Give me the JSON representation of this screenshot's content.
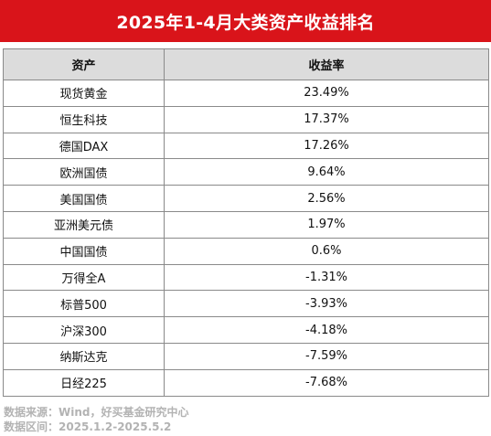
{
  "title": "2025年1-4月大类资产收益排名",
  "table": {
    "headers": [
      "资产",
      "收益率"
    ],
    "rows": [
      {
        "asset": "现货黄金",
        "return": "23.49%"
      },
      {
        "asset": "恒生科技",
        "return": "17.37%"
      },
      {
        "asset": "德国DAX",
        "return": "17.26%"
      },
      {
        "asset": "欧洲国债",
        "return": "9.64%"
      },
      {
        "asset": "美国国债",
        "return": "2.56%"
      },
      {
        "asset": "亚洲美元债",
        "return": "1.97%"
      },
      {
        "asset": "中国国债",
        "return": "0.6%"
      },
      {
        "asset": "万得全A",
        "return": "-1.31%"
      },
      {
        "asset": "标普500",
        "return": "-3.93%"
      },
      {
        "asset": "沪深300",
        "return": "-4.18%"
      },
      {
        "asset": "纳斯达克",
        "return": "-7.59%"
      },
      {
        "asset": "日经225",
        "return": "-7.68%"
      }
    ]
  },
  "footer": {
    "source": "数据来源：Wind，好买基金研究中心",
    "period": "数据区间：2025.1.2-2025.5.2"
  },
  "colors": {
    "title_bg": "#d9141a",
    "header_bg": "#dcdcdc",
    "footer_text": "#b3b3b3"
  },
  "chart_data": {
    "type": "table",
    "title": "2025年1-4月大类资产收益排名",
    "columns": [
      "资产",
      "收益率"
    ],
    "categories": [
      "现货黄金",
      "恒生科技",
      "德国DAX",
      "欧洲国债",
      "美国国债",
      "亚洲美元债",
      "中国国债",
      "万得全A",
      "标普500",
      "沪深300",
      "纳斯达克",
      "日经225"
    ],
    "values": [
      23.49,
      17.37,
      17.26,
      9.64,
      2.56,
      1.97,
      0.6,
      -1.31,
      -3.93,
      -4.18,
      -7.59,
      -7.68
    ],
    "unit": "%"
  }
}
